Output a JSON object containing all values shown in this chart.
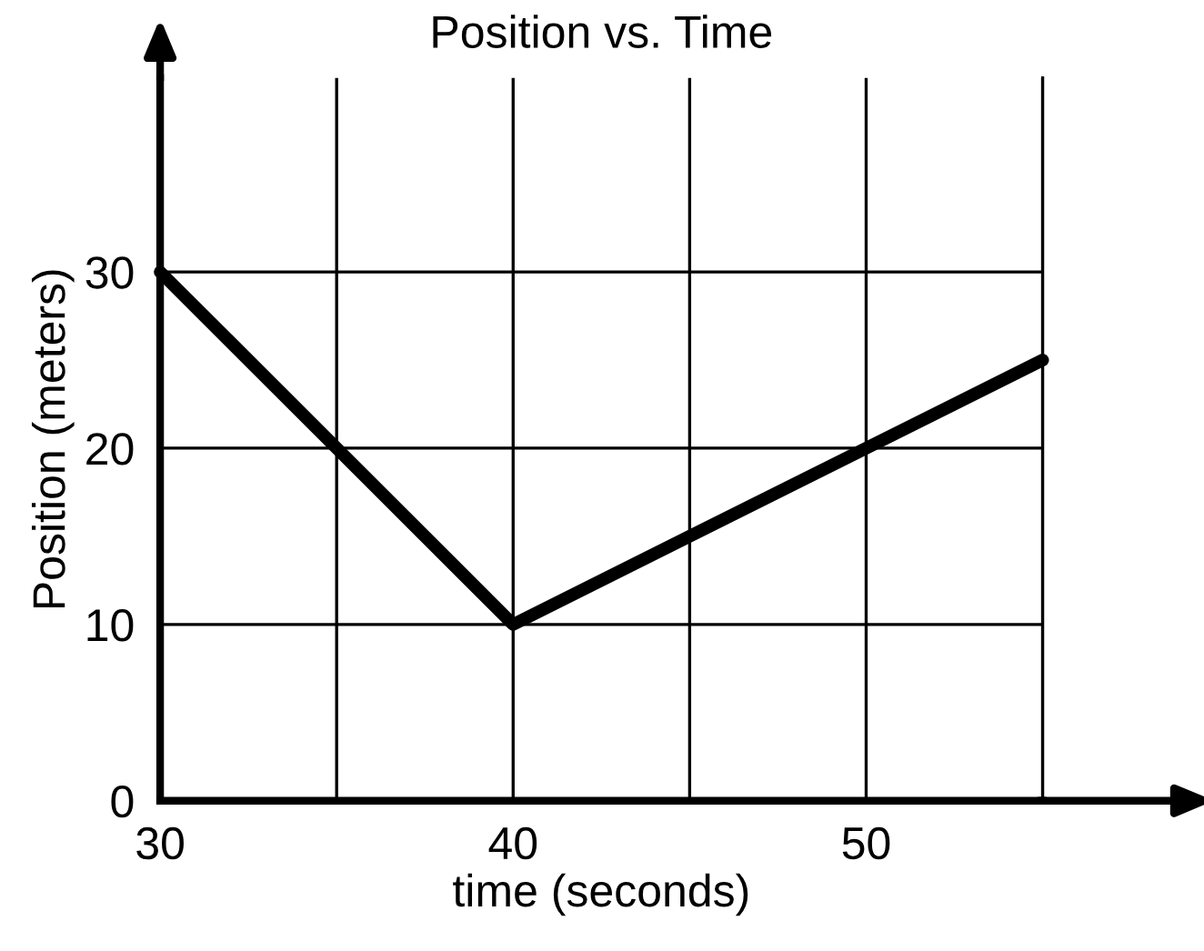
{
  "chart_data": {
    "type": "line",
    "title": "Position vs. Time",
    "xlabel": "time (seconds)",
    "ylabel": "Position (meters)",
    "x": [
      30,
      40,
      55
    ],
    "series": [
      {
        "color": "#000000",
        "values": [
          30,
          10,
          25
        ]
      }
    ],
    "xlim": [
      30,
      55
    ],
    "ylim": [
      0,
      41
    ],
    "xticks": [
      30,
      {
        "value": 35,
        "label": null
      },
      40,
      {
        "value": 45,
        "label": null
      },
      50,
      {
        "value": 55,
        "label": null
      }
    ],
    "yticks": [
      0,
      10,
      20,
      30
    ],
    "grid": true,
    "marker": "none",
    "line_style": "solid",
    "legend": false
  }
}
